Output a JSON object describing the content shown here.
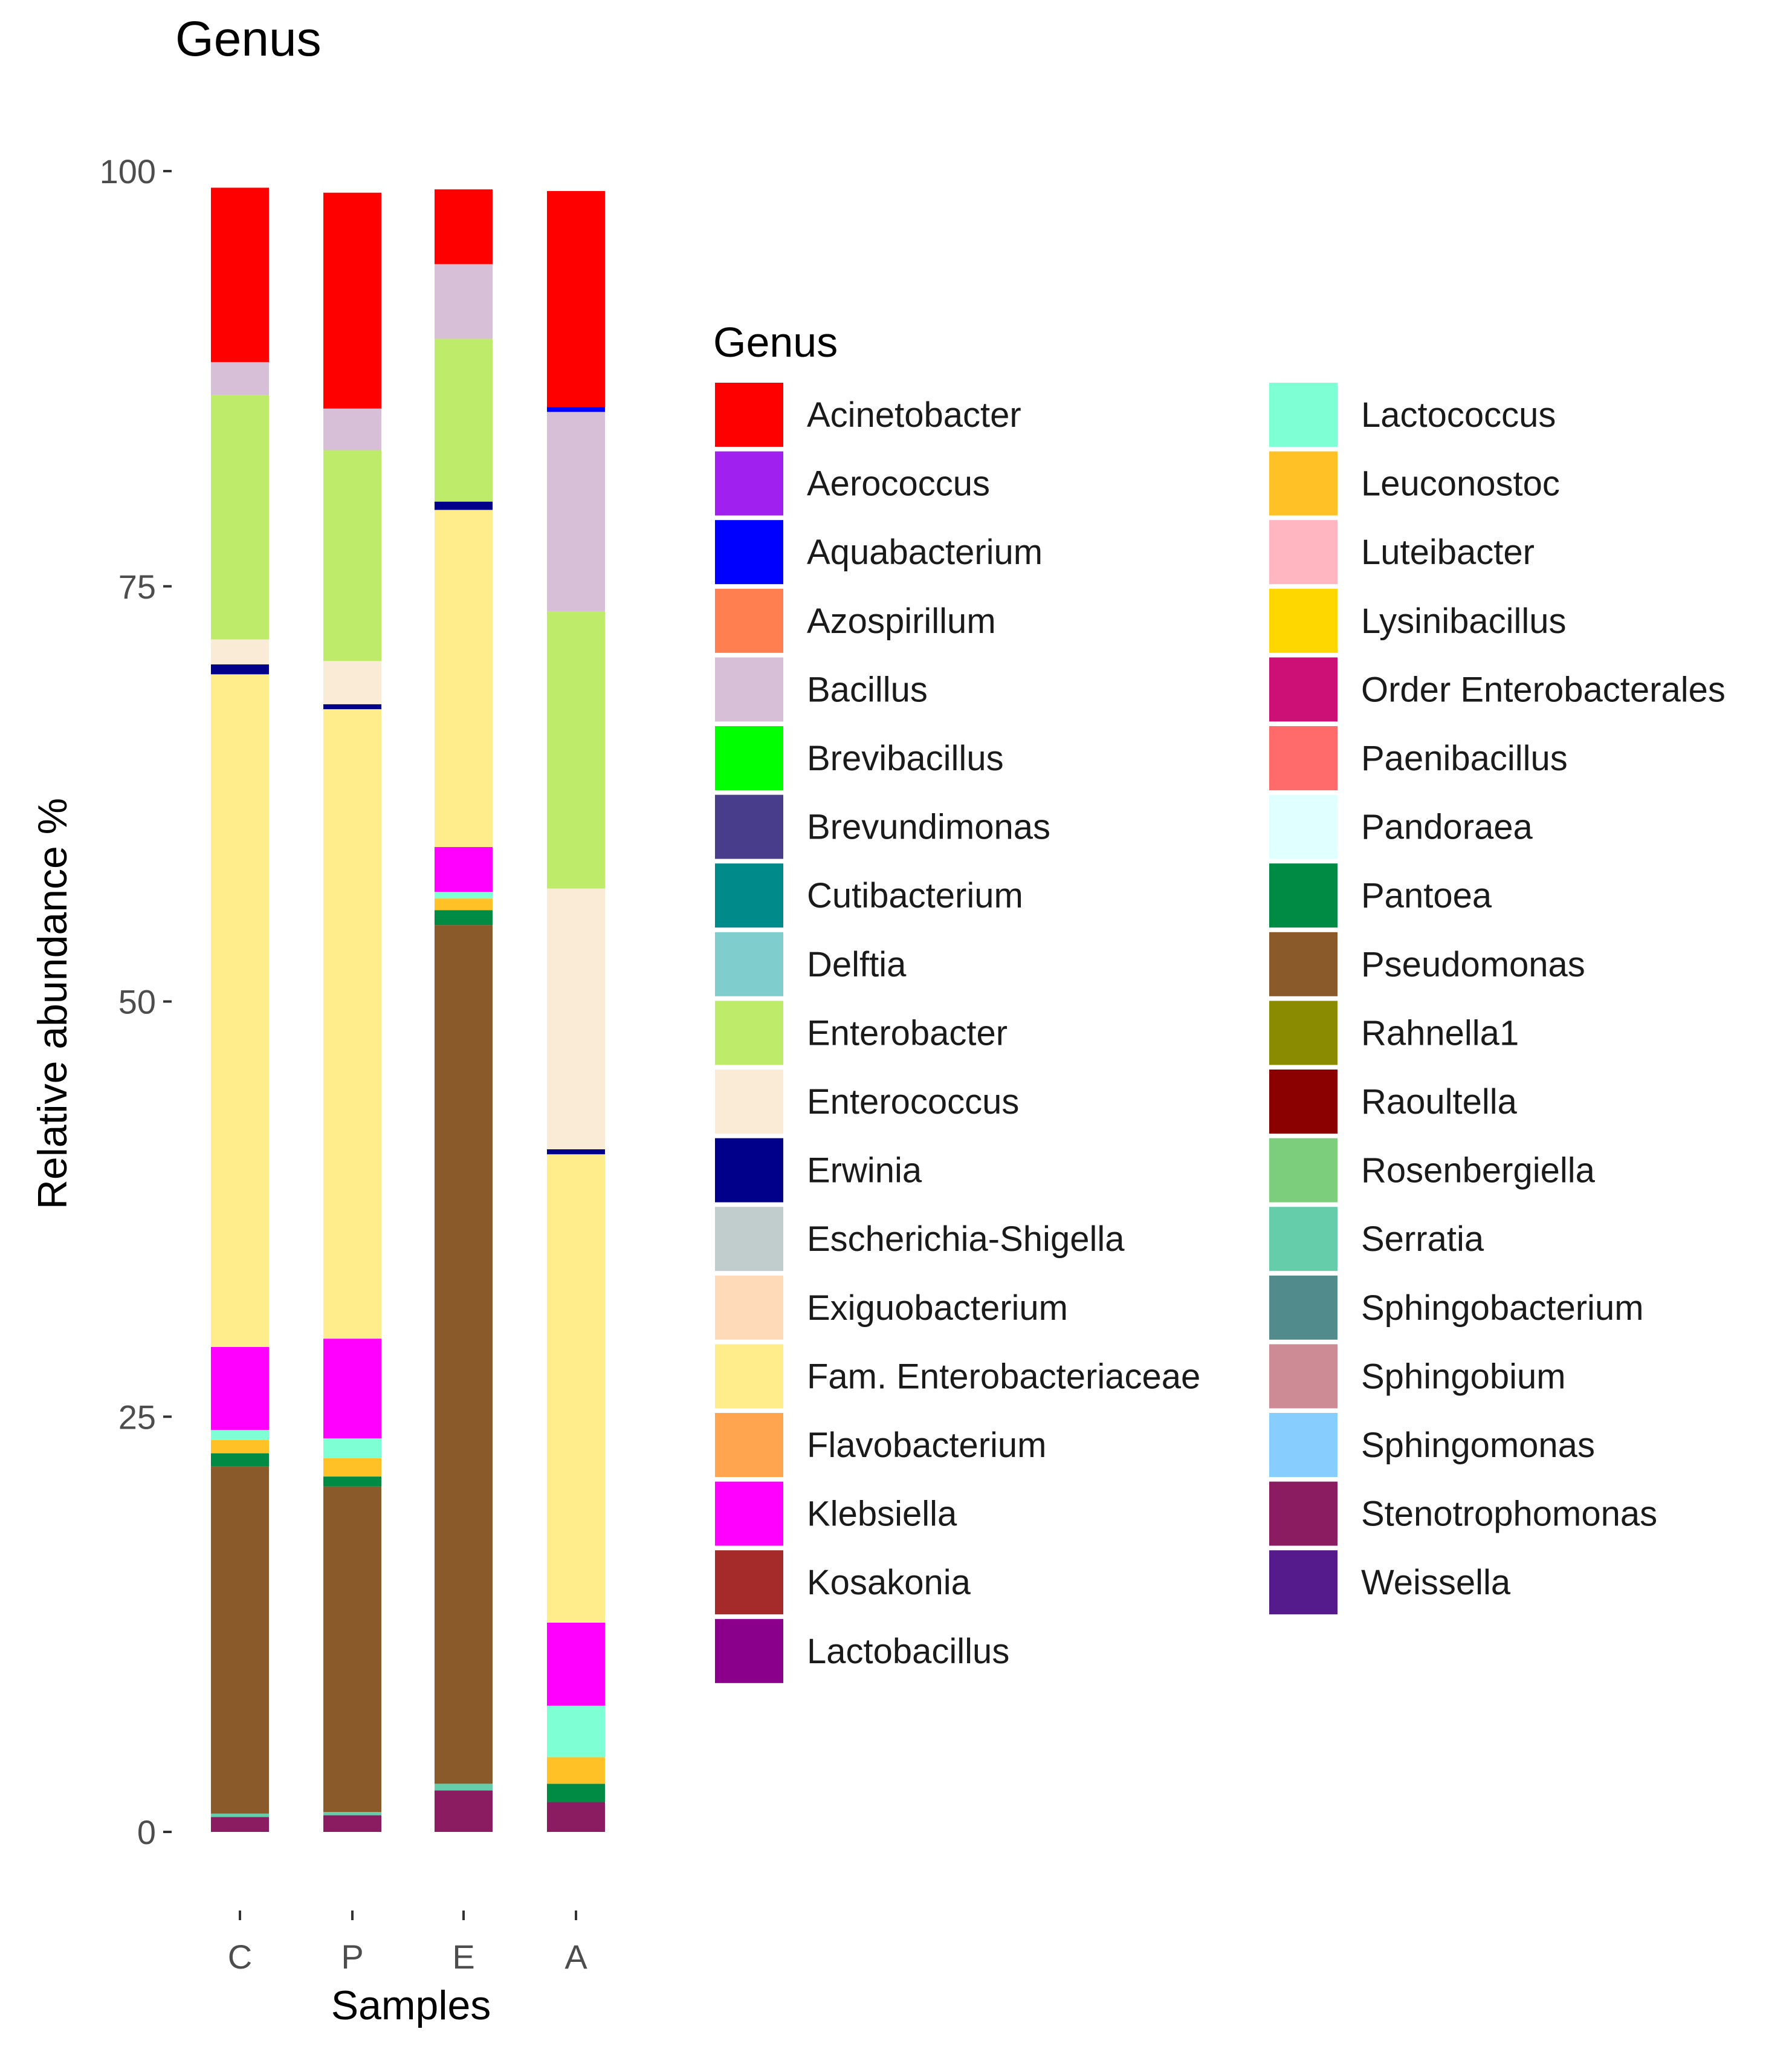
{
  "chart_data": {
    "type": "bar",
    "stacked": true,
    "title": "Genus",
    "xlabel": "Samples",
    "ylabel": "Relative abundance %",
    "ylim": [
      0,
      100
    ],
    "yticks": [
      0,
      25,
      50,
      75,
      100
    ],
    "categories": [
      "C",
      "P",
      "E",
      "A"
    ],
    "legend_title": "Genus",
    "legend_position": "right",
    "series": [
      {
        "name": "Acinetobacter",
        "color": "#FF0000",
        "values": [
          10.5,
          13.0,
          4.5,
          13.0
        ]
      },
      {
        "name": "Aerococcus",
        "color": "#A020F0",
        "values": [
          0,
          0,
          0,
          0
        ]
      },
      {
        "name": "Aquabacterium",
        "color": "#0000FF",
        "values": [
          0,
          0,
          0,
          0.3
        ]
      },
      {
        "name": "Azospirillum",
        "color": "#FF7F50",
        "values": [
          0,
          0,
          0,
          0
        ]
      },
      {
        "name": "Bacillus",
        "color": "#D8BFD8",
        "values": [
          2.0,
          2.5,
          4.5,
          12.0
        ]
      },
      {
        "name": "Brevibacillus",
        "color": "#00FF00",
        "values": [
          0,
          0,
          0,
          0
        ]
      },
      {
        "name": "Brevundimonas",
        "color": "#483D8B",
        "values": [
          0,
          0,
          0,
          0
        ]
      },
      {
        "name": "Cutibacterium",
        "color": "#008B8B",
        "values": [
          0,
          0,
          0,
          0
        ]
      },
      {
        "name": "Delftia",
        "color": "#7FCDCD",
        "values": [
          0,
          0,
          0,
          0
        ]
      },
      {
        "name": "Enterobacter",
        "color": "#BFEB6B",
        "values": [
          14.7,
          12.7,
          9.8,
          16.7
        ]
      },
      {
        "name": "Enterococcus",
        "color": "#FAEBD7",
        "values": [
          1.5,
          2.6,
          0,
          15.7
        ]
      },
      {
        "name": "Erwinia",
        "color": "#00008B",
        "values": [
          0.6,
          0.3,
          0.5,
          0.3
        ]
      },
      {
        "name": "Escherichia-Shigella",
        "color": "#C1CDCD",
        "values": [
          0,
          0,
          0,
          0
        ]
      },
      {
        "name": "Exiguobacterium",
        "color": "#FFDAB9",
        "values": [
          0,
          0,
          0,
          0
        ]
      },
      {
        "name": "Fam. Enterobacteriaceae",
        "color": "#FFEC8B",
        "values": [
          40.5,
          37.9,
          20.3,
          28.2
        ]
      },
      {
        "name": "Flavobacterium",
        "color": "#FFA54F",
        "values": [
          0,
          0,
          0,
          0
        ]
      },
      {
        "name": "Klebsiella",
        "color": "#FF00FF",
        "values": [
          5.0,
          6.0,
          2.7,
          5.0
        ]
      },
      {
        "name": "Kosakonia",
        "color": "#A52A2A",
        "values": [
          0,
          0,
          0,
          0
        ]
      },
      {
        "name": "Lactobacillus",
        "color": "#8B008B",
        "values": [
          0,
          0,
          0,
          0
        ]
      },
      {
        "name": "Lactococcus",
        "color": "#7FFFD4",
        "values": [
          0.6,
          1.2,
          0.4,
          3.1
        ]
      },
      {
        "name": "Leuconostoc",
        "color": "#FFC125",
        "values": [
          0.8,
          1.1,
          0.7,
          1.6
        ]
      },
      {
        "name": "Luteibacter",
        "color": "#FFB6C1",
        "values": [
          0,
          0,
          0,
          0
        ]
      },
      {
        "name": "Lysinibacillus",
        "color": "#FFD700",
        "values": [
          0,
          0,
          0,
          0
        ]
      },
      {
        "name": "Order Enterobacterales",
        "color": "#CD1076",
        "values": [
          0,
          0,
          0,
          0
        ]
      },
      {
        "name": "Paenibacillus",
        "color": "#FF6A6A",
        "values": [
          0,
          0,
          0,
          0
        ]
      },
      {
        "name": "Pandoraea",
        "color": "#E0FFFF",
        "values": [
          0,
          0,
          0,
          0
        ]
      },
      {
        "name": "Pantoea",
        "color": "#008B45",
        "values": [
          0.8,
          0.6,
          0.9,
          1.1
        ]
      },
      {
        "name": "Pseudomonas",
        "color": "#8B5A2B",
        "values": [
          20.9,
          19.6,
          51.7,
          0
        ]
      },
      {
        "name": "Rahnella1",
        "color": "#8B8B00",
        "values": [
          0,
          0,
          0,
          0
        ]
      },
      {
        "name": "Raoultella",
        "color": "#8B0000",
        "values": [
          0,
          0,
          0,
          0
        ]
      },
      {
        "name": "Rosenbergiella",
        "color": "#7CCD7C",
        "values": [
          0,
          0,
          0,
          0
        ]
      },
      {
        "name": "Serratia",
        "color": "#66CDAA",
        "values": [
          0.2,
          0.2,
          0.4,
          0
        ]
      },
      {
        "name": "Sphingobacterium",
        "color": "#528B8B",
        "values": [
          0,
          0,
          0,
          0
        ]
      },
      {
        "name": "Sphingobium",
        "color": "#CD8C95",
        "values": [
          0,
          0,
          0,
          0
        ]
      },
      {
        "name": "Sphingomonas",
        "color": "#87CEFF",
        "values": [
          0,
          0,
          0,
          0
        ]
      },
      {
        "name": "Stenotrophomonas",
        "color": "#8B1C62",
        "values": [
          0.9,
          1.0,
          2.5,
          1.8
        ]
      },
      {
        "name": "Weissella",
        "color": "#551A8B",
        "values": [
          0,
          0,
          0,
          0
        ]
      }
    ]
  }
}
